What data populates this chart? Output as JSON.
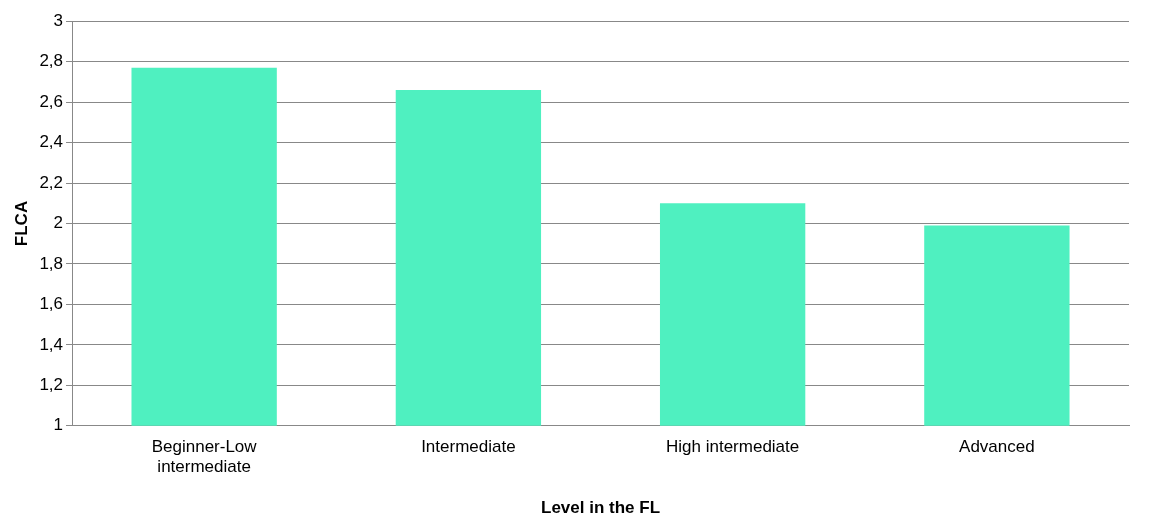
{
  "chart_data": {
    "type": "bar",
    "xlabel": "Level in the FL",
    "ylabel": "FLCA",
    "categories": [
      "Beginner-Low intermediate",
      "Intermediate",
      "High intermediate",
      "Advanced"
    ],
    "values": [
      2.77,
      2.66,
      2.1,
      1.99
    ],
    "color": "#4ff0c0",
    "ylim": [
      1,
      3
    ],
    "yticks": [
      {
        "value": 1,
        "label": "1"
      },
      {
        "value": 1.2,
        "label": "1,2"
      },
      {
        "value": 1.4,
        "label": "1,4"
      },
      {
        "value": 1.6,
        "label": "1,6"
      },
      {
        "value": 1.8,
        "label": "1,8"
      },
      {
        "value": 2,
        "label": "2"
      },
      {
        "value": 2.2,
        "label": "2,2"
      },
      {
        "value": 2.4,
        "label": "2,4"
      },
      {
        "value": 2.6,
        "label": "2,6"
      },
      {
        "value": 2.8,
        "label": "2,8"
      },
      {
        "value": 3,
        "label": "3"
      }
    ],
    "grid": "y",
    "legend": false
  }
}
